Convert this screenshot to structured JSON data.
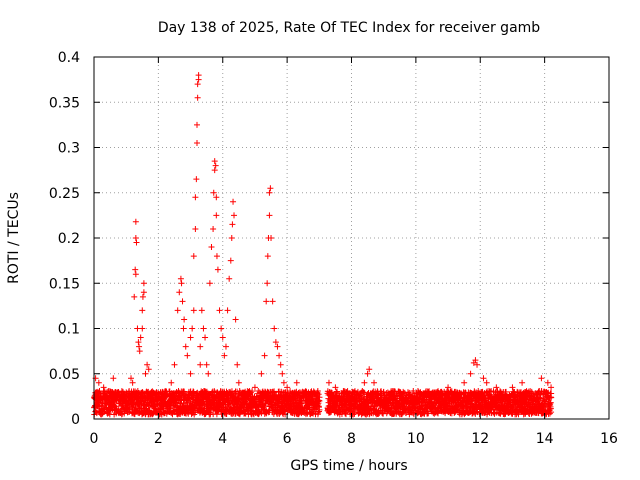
{
  "chart_data": {
    "type": "scatter",
    "title": "Day 138 of 2025, Rate Of TEC Index for receiver gamb",
    "xlabel": "GPS time / hours",
    "ylabel": "ROTI / TECUs",
    "xlim": [
      0,
      16
    ],
    "ylim": [
      0,
      0.4
    ],
    "xticks": [
      0,
      2,
      4,
      6,
      8,
      10,
      12,
      14,
      16
    ],
    "yticks": [
      0,
      0.05,
      0.1,
      0.15,
      0.2,
      0.25,
      0.3,
      0.35,
      0.4
    ],
    "xtick_labels": [
      "0",
      "2",
      "4",
      "6",
      "8",
      "10",
      "12",
      "14",
      "16"
    ],
    "ytick_labels": [
      "0",
      "0.05",
      "0.1",
      "0.15",
      "0.2",
      "0.25",
      "0.3",
      "0.35",
      "0.4"
    ],
    "grid": true,
    "marker": "plus",
    "color": "#ff0000",
    "series": [
      {
        "name": "ROTI",
        "points": [
          [
            0.05,
            0.045
          ],
          [
            0.1,
            0.03
          ],
          [
            0.15,
            0.04
          ],
          [
            0.2,
            0.025
          ],
          [
            0.3,
            0.035
          ],
          [
            0.4,
            0.02
          ],
          [
            0.5,
            0.03
          ],
          [
            0.6,
            0.045
          ],
          [
            0.7,
            0.025
          ],
          [
            0.8,
            0.02
          ],
          [
            0.9,
            0.03
          ],
          [
            1.0,
            0.025
          ],
          [
            1.1,
            0.02
          ],
          [
            1.15,
            0.045
          ],
          [
            1.2,
            0.04
          ],
          [
            1.25,
            0.135
          ],
          [
            1.28,
            0.165
          ],
          [
            1.3,
            0.16
          ],
          [
            1.3,
            0.2
          ],
          [
            1.3,
            0.218
          ],
          [
            1.32,
            0.195
          ],
          [
            1.35,
            0.1
          ],
          [
            1.38,
            0.085
          ],
          [
            1.4,
            0.08
          ],
          [
            1.42,
            0.075
          ],
          [
            1.45,
            0.09
          ],
          [
            1.5,
            0.1
          ],
          [
            1.5,
            0.12
          ],
          [
            1.52,
            0.135
          ],
          [
            1.55,
            0.15
          ],
          [
            1.55,
            0.14
          ],
          [
            1.6,
            0.05
          ],
          [
            1.65,
            0.06
          ],
          [
            1.7,
            0.055
          ],
          [
            1.8,
            0.03
          ],
          [
            2.0,
            0.025
          ],
          [
            2.2,
            0.03
          ],
          [
            2.4,
            0.04
          ],
          [
            2.5,
            0.06
          ],
          [
            2.6,
            0.12
          ],
          [
            2.65,
            0.14
          ],
          [
            2.7,
            0.155
          ],
          [
            2.72,
            0.15
          ],
          [
            2.75,
            0.13
          ],
          [
            2.78,
            0.1
          ],
          [
            2.8,
            0.11
          ],
          [
            2.85,
            0.08
          ],
          [
            2.9,
            0.07
          ],
          [
            3.0,
            0.05
          ],
          [
            3.0,
            0.09
          ],
          [
            3.05,
            0.1
          ],
          [
            3.1,
            0.12
          ],
          [
            3.1,
            0.18
          ],
          [
            3.15,
            0.21
          ],
          [
            3.15,
            0.245
          ],
          [
            3.18,
            0.265
          ],
          [
            3.2,
            0.305
          ],
          [
            3.2,
            0.325
          ],
          [
            3.22,
            0.355
          ],
          [
            3.22,
            0.37
          ],
          [
            3.25,
            0.375
          ],
          [
            3.25,
            0.38
          ],
          [
            3.3,
            0.08
          ],
          [
            3.3,
            0.06
          ],
          [
            3.35,
            0.12
          ],
          [
            3.4,
            0.1
          ],
          [
            3.45,
            0.09
          ],
          [
            3.5,
            0.06
          ],
          [
            3.55,
            0.05
          ],
          [
            3.6,
            0.15
          ],
          [
            3.65,
            0.19
          ],
          [
            3.7,
            0.21
          ],
          [
            3.72,
            0.25
          ],
          [
            3.75,
            0.275
          ],
          [
            3.75,
            0.285
          ],
          [
            3.78,
            0.28
          ],
          [
            3.8,
            0.245
          ],
          [
            3.8,
            0.225
          ],
          [
            3.82,
            0.18
          ],
          [
            3.85,
            0.165
          ],
          [
            3.9,
            0.12
          ],
          [
            3.95,
            0.1
          ],
          [
            4.0,
            0.09
          ],
          [
            4.05,
            0.07
          ],
          [
            4.1,
            0.08
          ],
          [
            4.15,
            0.12
          ],
          [
            4.2,
            0.155
          ],
          [
            4.25,
            0.175
          ],
          [
            4.28,
            0.2
          ],
          [
            4.3,
            0.215
          ],
          [
            4.32,
            0.24
          ],
          [
            4.35,
            0.225
          ],
          [
            4.4,
            0.11
          ],
          [
            4.45,
            0.06
          ],
          [
            4.5,
            0.04
          ],
          [
            4.8,
            0.03
          ],
          [
            5.0,
            0.035
          ],
          [
            5.2,
            0.05
          ],
          [
            5.3,
            0.07
          ],
          [
            5.35,
            0.13
          ],
          [
            5.38,
            0.15
          ],
          [
            5.4,
            0.18
          ],
          [
            5.42,
            0.2
          ],
          [
            5.45,
            0.225
          ],
          [
            5.45,
            0.25
          ],
          [
            5.48,
            0.255
          ],
          [
            5.5,
            0.2
          ],
          [
            5.55,
            0.13
          ],
          [
            5.6,
            0.1
          ],
          [
            5.65,
            0.085
          ],
          [
            5.7,
            0.08
          ],
          [
            5.75,
            0.07
          ],
          [
            5.8,
            0.06
          ],
          [
            5.85,
            0.05
          ],
          [
            5.9,
            0.04
          ],
          [
            6.0,
            0.035
          ],
          [
            6.3,
            0.04
          ],
          [
            6.6,
            0.03
          ],
          [
            6.9,
            0.025
          ],
          [
            7.3,
            0.04
          ],
          [
            7.5,
            0.035
          ],
          [
            7.8,
            0.03
          ],
          [
            8.0,
            0.025
          ],
          [
            8.2,
            0.03
          ],
          [
            8.4,
            0.04
          ],
          [
            8.5,
            0.05
          ],
          [
            8.55,
            0.055
          ],
          [
            8.7,
            0.04
          ],
          [
            9.0,
            0.03
          ],
          [
            9.3,
            0.025
          ],
          [
            9.6,
            0.02
          ],
          [
            9.9,
            0.025
          ],
          [
            10.2,
            0.02
          ],
          [
            10.5,
            0.025
          ],
          [
            10.8,
            0.03
          ],
          [
            11.0,
            0.035
          ],
          [
            11.2,
            0.03
          ],
          [
            11.5,
            0.04
          ],
          [
            11.7,
            0.05
          ],
          [
            11.8,
            0.062
          ],
          [
            11.85,
            0.065
          ],
          [
            11.9,
            0.06
          ],
          [
            12.1,
            0.045
          ],
          [
            12.2,
            0.04
          ],
          [
            12.5,
            0.035
          ],
          [
            12.8,
            0.03
          ],
          [
            13.0,
            0.035
          ],
          [
            13.3,
            0.04
          ],
          [
            13.6,
            0.03
          ],
          [
            13.9,
            0.045
          ],
          [
            14.1,
            0.04
          ],
          [
            14.2,
            0.035
          ]
        ]
      }
    ]
  }
}
